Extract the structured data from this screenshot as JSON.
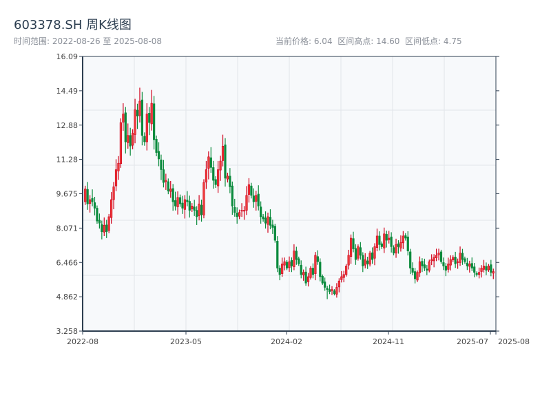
{
  "header": {
    "title": "603378.SH 周K线图",
    "range_text": "时间范围: 2022-08-26 至 2025-08-08",
    "stats_text": "当前价格: 6.04  区间高点: 14.60  区间低点: 4.75"
  },
  "colors": {
    "up": "#d0021b",
    "up_fill": "#ee3b3b",
    "down": "#0a8a3c",
    "plot_bg": "#f7f9fb",
    "grid": "#e2e5ea",
    "axis": "#2d3e50"
  },
  "chart_data": {
    "type": "candlestick",
    "title": "603378.SH 周K线图",
    "start_date": "2022-08-26",
    "end_date": "2025-08-08",
    "ylim": [
      3.258,
      16.09
    ],
    "y_ticks": [
      "16.09",
      "14.49",
      "12.88",
      "11.28",
      "9.675",
      "8.071",
      "6.466",
      "4.862",
      "3.258"
    ],
    "x_ticks": [
      "2022-08",
      "2023-05",
      "2024-02",
      "2024-11",
      "2025-07",
      "2025-08"
    ],
    "grid": true,
    "up_color": "red",
    "down_color": "green",
    "current_price": 6.04,
    "range_high": 14.6,
    "range_low": 4.75,
    "closes": [
      9.9,
      9.2,
      9.4,
      9.3,
      9.0,
      8.4,
      8.3,
      7.9,
      8.2,
      7.9,
      8.6,
      9.4,
      10.0,
      10.8,
      11.1,
      13.0,
      13.4,
      12.1,
      12.4,
      11.9,
      12.5,
      13.6,
      13.3,
      14.0,
      12.4,
      12.1,
      13.4,
      13.0,
      13.9,
      12.2,
      11.6,
      11.3,
      10.8,
      10.2,
      10.3,
      9.8,
      9.9,
      9.3,
      9.1,
      9.5,
      9.2,
      9.0,
      9.4,
      9.3,
      8.9,
      9.1,
      8.9,
      8.6,
      9.2,
      8.7,
      10.2,
      10.8,
      11.4,
      10.9,
      10.3,
      10.1,
      10.8,
      11.2,
      11.9,
      10.4,
      10.5,
      10.0,
      9.1,
      8.8,
      8.6,
      8.8,
      8.9,
      8.9,
      9.6,
      10.1,
      9.6,
      9.3,
      9.6,
      9.1,
      8.6,
      8.5,
      8.3,
      8.6,
      8.2,
      8.1,
      7.5,
      6.2,
      5.9,
      6.4,
      6.5,
      6.2,
      6.5,
      6.3,
      7.0,
      6.6,
      6.4,
      5.9,
      6.0,
      5.5,
      5.8,
      6.2,
      5.9,
      6.8,
      6.5,
      5.8,
      5.5,
      5.3,
      5.2,
      5.1,
      5.2,
      5.0,
      5.3,
      5.6,
      5.8,
      5.9,
      6.3,
      6.8,
      7.6,
      7.1,
      6.6,
      7.2,
      6.8,
      6.3,
      6.6,
      6.4,
      6.9,
      6.6,
      7.2,
      7.7,
      7.3,
      7.2,
      7.8,
      7.5,
      7.6,
      7.2,
      6.9,
      7.3,
      7.2,
      7.4,
      7.7,
      7.6,
      7.0,
      6.2,
      6.0,
      5.7,
      6.0,
      6.5,
      6.3,
      6.2,
      6.1,
      6.5,
      6.6,
      6.7,
      6.8,
      6.9,
      6.5,
      6.3,
      6.1,
      6.4,
      6.6,
      6.7,
      6.4,
      6.5,
      6.9,
      6.6,
      6.5,
      6.3,
      6.4,
      6.2,
      6.0,
      5.9,
      6.0,
      6.2,
      6.3,
      6.1,
      6.3,
      6.0,
      6.04
    ]
  }
}
